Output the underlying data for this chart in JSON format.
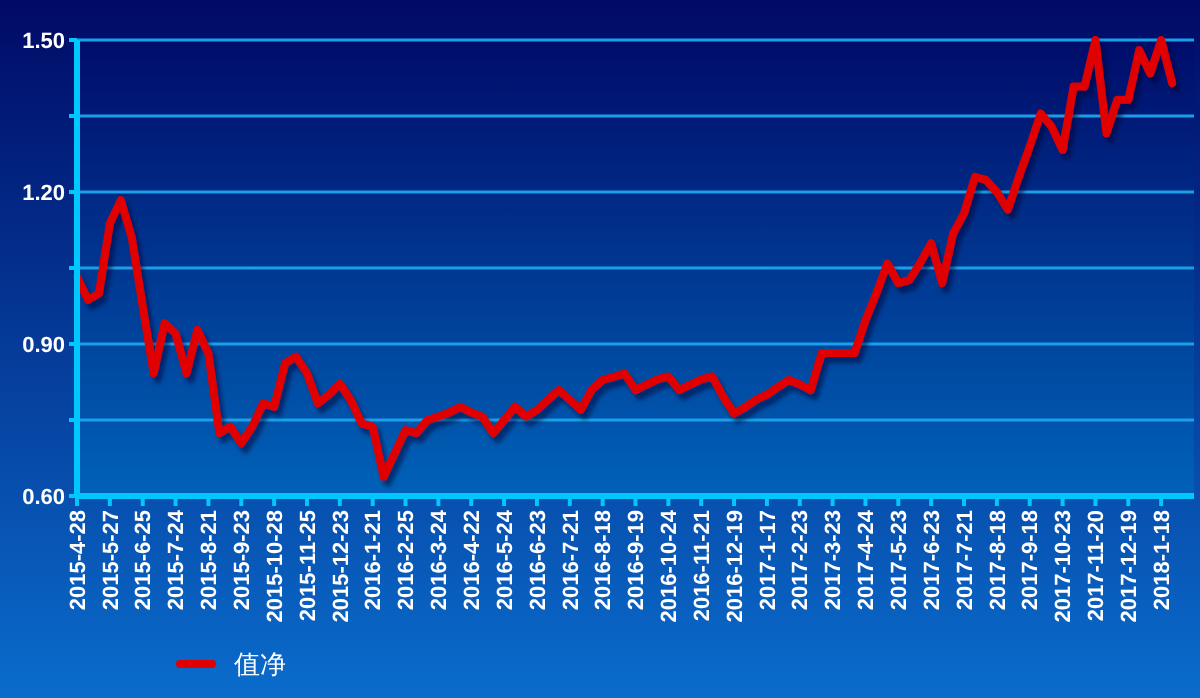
{
  "chart_data": {
    "type": "line",
    "categories": [
      "2015-4-28",
      null,
      null,
      "2015-5-27",
      null,
      null,
      "2015-6-25",
      null,
      null,
      "2015-7-24",
      null,
      null,
      "2015-8-21",
      null,
      null,
      "2015-9-23",
      null,
      null,
      "2015-10-28",
      null,
      null,
      "2015-11-25",
      null,
      null,
      "2015-12-23",
      null,
      null,
      "2016-1-21",
      null,
      null,
      "2016-2-25",
      null,
      null,
      "2016-3-24",
      null,
      null,
      "2016-4-22",
      null,
      null,
      "2016-5-24",
      null,
      null,
      "2016-6-23",
      null,
      null,
      "2016-7-21",
      null,
      null,
      "2016-8-18",
      null,
      null,
      "2016-9-19",
      null,
      null,
      "2016-10-24",
      null,
      null,
      "2016-11-21",
      null,
      null,
      "2016-12-19",
      null,
      null,
      "2017-1-17",
      null,
      null,
      "2017-2-23",
      null,
      null,
      "2017-3-23",
      null,
      null,
      "2017-4-24",
      null,
      null,
      "2017-5-23",
      null,
      null,
      "2017-6-23",
      null,
      null,
      "2017-7-21",
      null,
      null,
      "2017-8-18",
      null,
      null,
      "2017-9-18",
      null,
      null,
      "2017-10-23",
      null,
      null,
      "2017-11-20",
      null,
      null,
      "2017-12-19",
      null,
      null,
      "2018-1-18",
      null,
      null,
      null
    ],
    "series": [
      {
        "name": "值净",
        "color": "#e00000",
        "values": [
          1.033,
          0.987,
          1.0,
          1.138,
          1.184,
          1.11,
          0.974,
          0.842,
          0.941,
          0.921,
          0.842,
          0.928,
          0.881,
          0.724,
          0.737,
          0.704,
          0.737,
          0.783,
          0.776,
          0.862,
          0.875,
          0.842,
          0.783,
          0.8,
          0.822,
          0.789,
          0.743,
          0.737,
          0.638,
          0.684,
          0.73,
          0.724,
          0.75,
          0.757,
          0.765,
          0.776,
          0.765,
          0.757,
          0.724,
          0.75,
          0.776,
          0.757,
          0.77,
          0.79,
          0.809,
          0.79,
          0.77,
          0.81,
          0.829,
          0.835,
          0.842,
          0.809,
          0.82,
          0.83,
          0.836,
          0.809,
          0.82,
          0.83,
          0.836,
          0.796,
          0.763,
          0.775,
          0.79,
          0.8,
          0.815,
          0.829,
          0.82,
          0.809,
          0.882,
          0.882,
          0.882,
          0.882,
          0.947,
          1.0,
          1.059,
          1.02,
          1.026,
          1.06,
          1.099,
          1.02,
          1.118,
          1.158,
          1.23,
          1.224,
          1.2,
          1.165,
          1.23,
          1.29,
          1.355,
          1.329,
          1.283,
          1.408,
          1.408,
          1.5,
          1.316,
          1.382,
          1.382,
          1.48,
          1.434,
          1.5,
          1.415,
          null,
          null
        ]
      }
    ],
    "ylim": [
      0.6,
      1.5
    ],
    "yticks": [
      {
        "value": 0.6,
        "label": "0.60"
      },
      {
        "value": 0.75,
        "label": null
      },
      {
        "value": 0.9,
        "label": "0.90"
      },
      {
        "value": 1.05,
        "label": null
      },
      {
        "value": 1.2,
        "label": "1.20"
      },
      {
        "value": 1.35,
        "label": null
      },
      {
        "value": 1.5,
        "label": "1.50"
      }
    ],
    "grid": "y",
    "legend": "bottom left",
    "marker": "none",
    "line_style": "solid"
  }
}
